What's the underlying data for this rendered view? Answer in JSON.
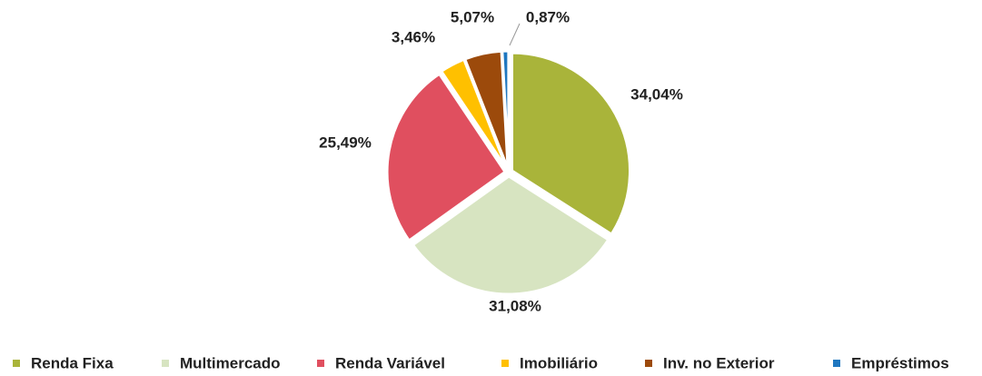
{
  "chart_data": {
    "type": "pie",
    "categories": [
      "Renda Fixa",
      "Multimercado",
      "Renda Variável",
      "Imobiliário",
      "Inv. no Exterior",
      "Empréstimos"
    ],
    "values": [
      34.04,
      31.08,
      25.49,
      3.46,
      5.07,
      0.87
    ],
    "value_labels": [
      "34,04%",
      "31,08%",
      "25,49%",
      "3,46%",
      "5,07%",
      "0,87%"
    ],
    "colors": [
      "#a9b43a",
      "#d7e4c1",
      "#e04f5f",
      "#ffc000",
      "#9c4a0b",
      "#1f77c0"
    ],
    "legend": "bottom"
  }
}
